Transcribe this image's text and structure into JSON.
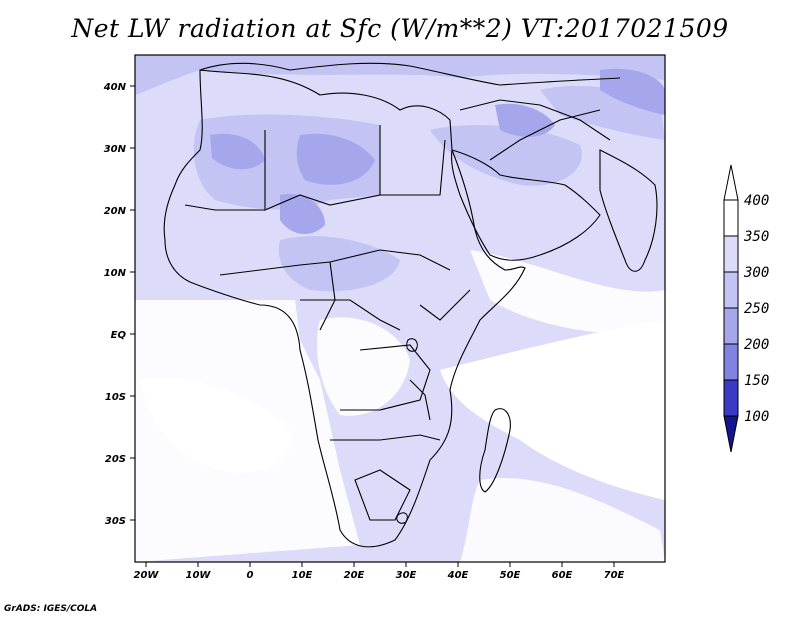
{
  "title": "Net LW radiation at Sfc (W/m**2) VT:2017021509",
  "credit": "GrADS: IGES/COLA",
  "map": {
    "projection": "lat-lon",
    "lon_range": [
      -22,
      80
    ],
    "lat_range": [
      -37,
      45
    ],
    "region": "Africa, Middle East and western Indian Ocean"
  },
  "axes": {
    "x_ticks": [
      "20W",
      "10W",
      "0",
      "10E",
      "20E",
      "30E",
      "40E",
      "50E",
      "60E",
      "70E"
    ],
    "y_ticks": [
      "40N",
      "30N",
      "20N",
      "10N",
      "EQ",
      "10S",
      "20S",
      "30S"
    ]
  },
  "colorbar": {
    "levels": [
      "400",
      "350",
      "300",
      "250",
      "200",
      "150",
      "100"
    ],
    "colors": [
      "#ffffff",
      "#dcdcfa",
      "#c4c4f4",
      "#a6a6ec",
      "#8282e0",
      "#5c5cd2",
      "#3a3ac2",
      "#1e1eaa",
      "#14148e"
    ],
    "extends": "both"
  },
  "colors": {
    "land_outline": "#000000",
    "ocean_white": "#ffffff"
  }
}
